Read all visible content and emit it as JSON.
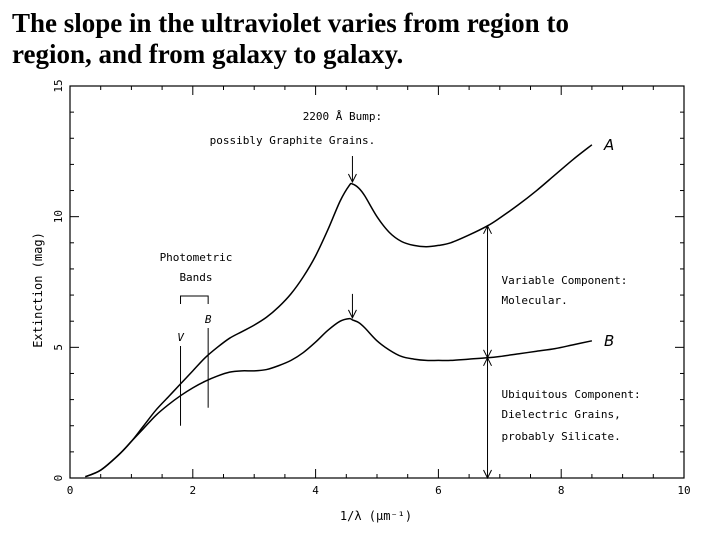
{
  "slide": {
    "title_line1": "The slope in the ultraviolet varies from region to",
    "title_line2": "region, and from galaxy to galaxy."
  },
  "chart_data": {
    "type": "line",
    "title": "",
    "xlabel": "1/λ (μm⁻¹)",
    "ylabel": "Extinction (mag)",
    "xlim": [
      0,
      10
    ],
    "ylim": [
      0,
      15
    ],
    "x_ticks": [
      "0",
      "2",
      "4",
      "6",
      "8",
      "10"
    ],
    "y_ticks": [
      "0",
      "5",
      "10",
      "15"
    ],
    "grid": false,
    "series": [
      {
        "name": "A",
        "color": "#000000",
        "x": [
          0.25,
          0.5,
          0.8,
          1.0,
          1.2,
          1.4,
          1.6,
          1.8,
          2.0,
          2.2,
          2.4,
          2.6,
          2.8,
          3.0,
          3.2,
          3.4,
          3.6,
          3.8,
          4.0,
          4.2,
          4.4,
          4.55,
          4.6,
          4.7,
          4.8,
          5.0,
          5.2,
          5.4,
          5.6,
          5.8,
          6.0,
          6.2,
          6.5,
          6.8,
          7.0,
          7.3,
          7.6,
          7.9,
          8.2,
          8.5
        ],
        "values": [
          0.05,
          0.3,
          0.9,
          1.4,
          2.0,
          2.6,
          3.1,
          3.6,
          4.1,
          4.6,
          5.0,
          5.35,
          5.6,
          5.85,
          6.15,
          6.55,
          7.05,
          7.7,
          8.5,
          9.5,
          10.6,
          11.2,
          11.25,
          11.1,
          10.8,
          10.0,
          9.4,
          9.05,
          8.9,
          8.85,
          8.9,
          9.0,
          9.3,
          9.65,
          9.95,
          10.45,
          11.0,
          11.6,
          12.2,
          12.75
        ]
      },
      {
        "name": "B",
        "color": "#000000",
        "x": [
          0.25,
          0.5,
          0.8,
          1.0,
          1.2,
          1.4,
          1.6,
          1.8,
          2.0,
          2.2,
          2.4,
          2.6,
          2.8,
          3.0,
          3.2,
          3.4,
          3.6,
          3.8,
          4.0,
          4.2,
          4.4,
          4.55,
          4.6,
          4.7,
          4.8,
          5.0,
          5.2,
          5.4,
          5.6,
          5.8,
          6.0,
          6.2,
          6.5,
          6.8,
          7.0,
          7.3,
          7.6,
          7.9,
          8.2,
          8.5
        ],
        "values": [
          0.05,
          0.3,
          0.9,
          1.4,
          1.9,
          2.4,
          2.8,
          3.15,
          3.45,
          3.7,
          3.9,
          4.05,
          4.1,
          4.1,
          4.15,
          4.3,
          4.5,
          4.8,
          5.2,
          5.65,
          6.0,
          6.1,
          6.05,
          5.95,
          5.75,
          5.25,
          4.9,
          4.65,
          4.55,
          4.5,
          4.5,
          4.5,
          4.55,
          4.6,
          4.65,
          4.75,
          4.85,
          4.95,
          5.1,
          5.25
        ]
      }
    ],
    "series_labels": [
      {
        "text": "A",
        "x": 8.6,
        "y": 12.75
      },
      {
        "text": "B",
        "x": 8.6,
        "y": 5.25
      }
    ],
    "annotations": {
      "bump_line1": "2200 Å Bump:",
      "bump_line2": "possibly Graphite Grains.",
      "bands_line1": "Photometric",
      "bands_line2": "Bands",
      "band_v": "V",
      "band_b": "B",
      "variable_line1": "Variable Component:",
      "variable_line2": "Molecular.",
      "ubiquitous_line1": "Ubiquitous Component:",
      "ubiquitous_line2": "Dielectric Grains,",
      "ubiquitous_line3": "probably Silicate."
    },
    "markers": {
      "band_v_x": 1.8,
      "band_b_x": 2.25,
      "band_bottom_y": 2.0,
      "bump_x": 4.6,
      "component_x": 6.8
    }
  }
}
